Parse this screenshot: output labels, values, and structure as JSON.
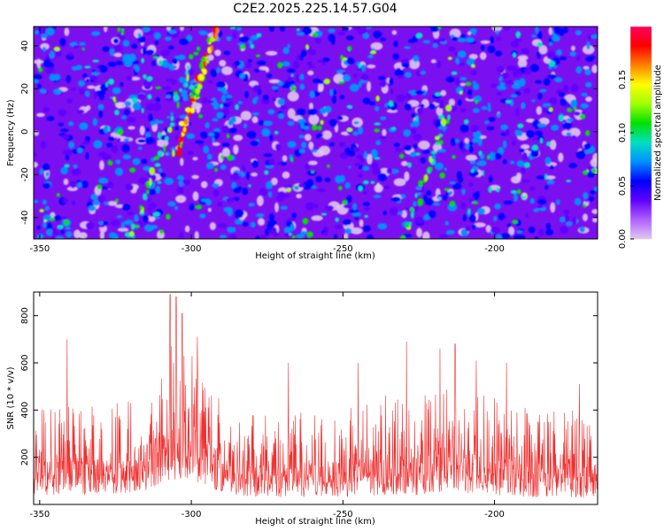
{
  "figure": {
    "title": "C2E2.2025.225.14.57.G04"
  },
  "chart_data": [
    {
      "type": "heatmap",
      "xlabel": "Height of straight line (km)",
      "ylabel": "Frequency (Hz)",
      "xlim": [
        -352,
        -166
      ],
      "ylim": [
        -50,
        49
      ],
      "x_ticks": [
        -350,
        -300,
        -250,
        -200
      ],
      "y_ticks": [
        -40,
        -20,
        0,
        20,
        40
      ],
      "colorbar": {
        "label": "Normalized spectral amplitude",
        "range": [
          0.0,
          0.2
        ],
        "ticks": [
          "0.00",
          "0.05",
          "0.10",
          "0.15"
        ],
        "colors": [
          "#e0c8f0",
          "#b060ff",
          "#6000ff",
          "#0000ff",
          "#0090ff",
          "#00e0c0",
          "#00e000",
          "#a0ff00",
          "#ffff00",
          "#ff8000",
          "#ff0000",
          "#ff0060"
        ]
      },
      "features": [
        {
          "name": "strong streak",
          "x_range": [
            -305,
            -292
          ],
          "y_range": [
            -10,
            48
          ]
        },
        {
          "name": "weak streak",
          "x_range": [
            -320,
            -298
          ],
          "y_range": [
            -50,
            40
          ]
        },
        {
          "name": "weak streak",
          "x_range": [
            -230,
            -215
          ],
          "y_range": [
            -50,
            10
          ]
        }
      ]
    },
    {
      "type": "line",
      "xlabel": "Height of straight line (km)",
      "ylabel": "SNR (10 * v/v)",
      "xlim": [
        -352,
        -166
      ],
      "ylim": [
        0,
        900
      ],
      "x_ticks": [
        -350,
        -300,
        -250,
        -200
      ],
      "y_ticks": [
        200,
        400,
        600,
        800
      ],
      "series_color": "#f03030",
      "envelope": [
        {
          "x": -352,
          "low": 40,
          "mean": 210,
          "high": 420
        },
        {
          "x": -340,
          "low": 40,
          "mean": 200,
          "high": 420
        },
        {
          "x": -325,
          "low": 40,
          "mean": 200,
          "high": 440
        },
        {
          "x": -315,
          "low": 60,
          "mean": 250,
          "high": 500
        },
        {
          "x": -308,
          "low": 100,
          "mean": 340,
          "high": 700
        },
        {
          "x": -302,
          "low": 110,
          "mean": 360,
          "high": 720
        },
        {
          "x": -295,
          "low": 80,
          "mean": 320,
          "high": 600
        },
        {
          "x": -290,
          "low": 50,
          "mean": 230,
          "high": 430
        },
        {
          "x": -280,
          "low": 30,
          "mean": 170,
          "high": 380
        },
        {
          "x": -265,
          "low": 30,
          "mean": 180,
          "high": 400
        },
        {
          "x": -250,
          "low": 30,
          "mean": 180,
          "high": 430
        },
        {
          "x": -235,
          "low": 40,
          "mean": 200,
          "high": 470
        },
        {
          "x": -222,
          "low": 40,
          "mean": 210,
          "high": 480
        },
        {
          "x": -216,
          "low": 60,
          "mean": 260,
          "high": 500
        },
        {
          "x": -205,
          "low": 40,
          "mean": 220,
          "high": 470
        },
        {
          "x": -190,
          "low": 30,
          "mean": 190,
          "high": 430
        },
        {
          "x": -175,
          "low": 30,
          "mean": 175,
          "high": 410
        },
        {
          "x": -166,
          "low": 30,
          "mean": 180,
          "high": 420
        }
      ],
      "peaks": [
        {
          "x": -341,
          "y": 700
        },
        {
          "x": -307,
          "y": 890
        },
        {
          "x": -305,
          "y": 880
        },
        {
          "x": -303,
          "y": 810
        },
        {
          "x": -298,
          "y": 710
        },
        {
          "x": -268,
          "y": 600
        },
        {
          "x": -245,
          "y": 600
        },
        {
          "x": -229,
          "y": 690
        },
        {
          "x": -218,
          "y": 660
        },
        {
          "x": -213,
          "y": 680
        },
        {
          "x": -206,
          "y": 610
        },
        {
          "x": -196,
          "y": 600
        },
        {
          "x": -172,
          "y": 510
        }
      ]
    }
  ]
}
